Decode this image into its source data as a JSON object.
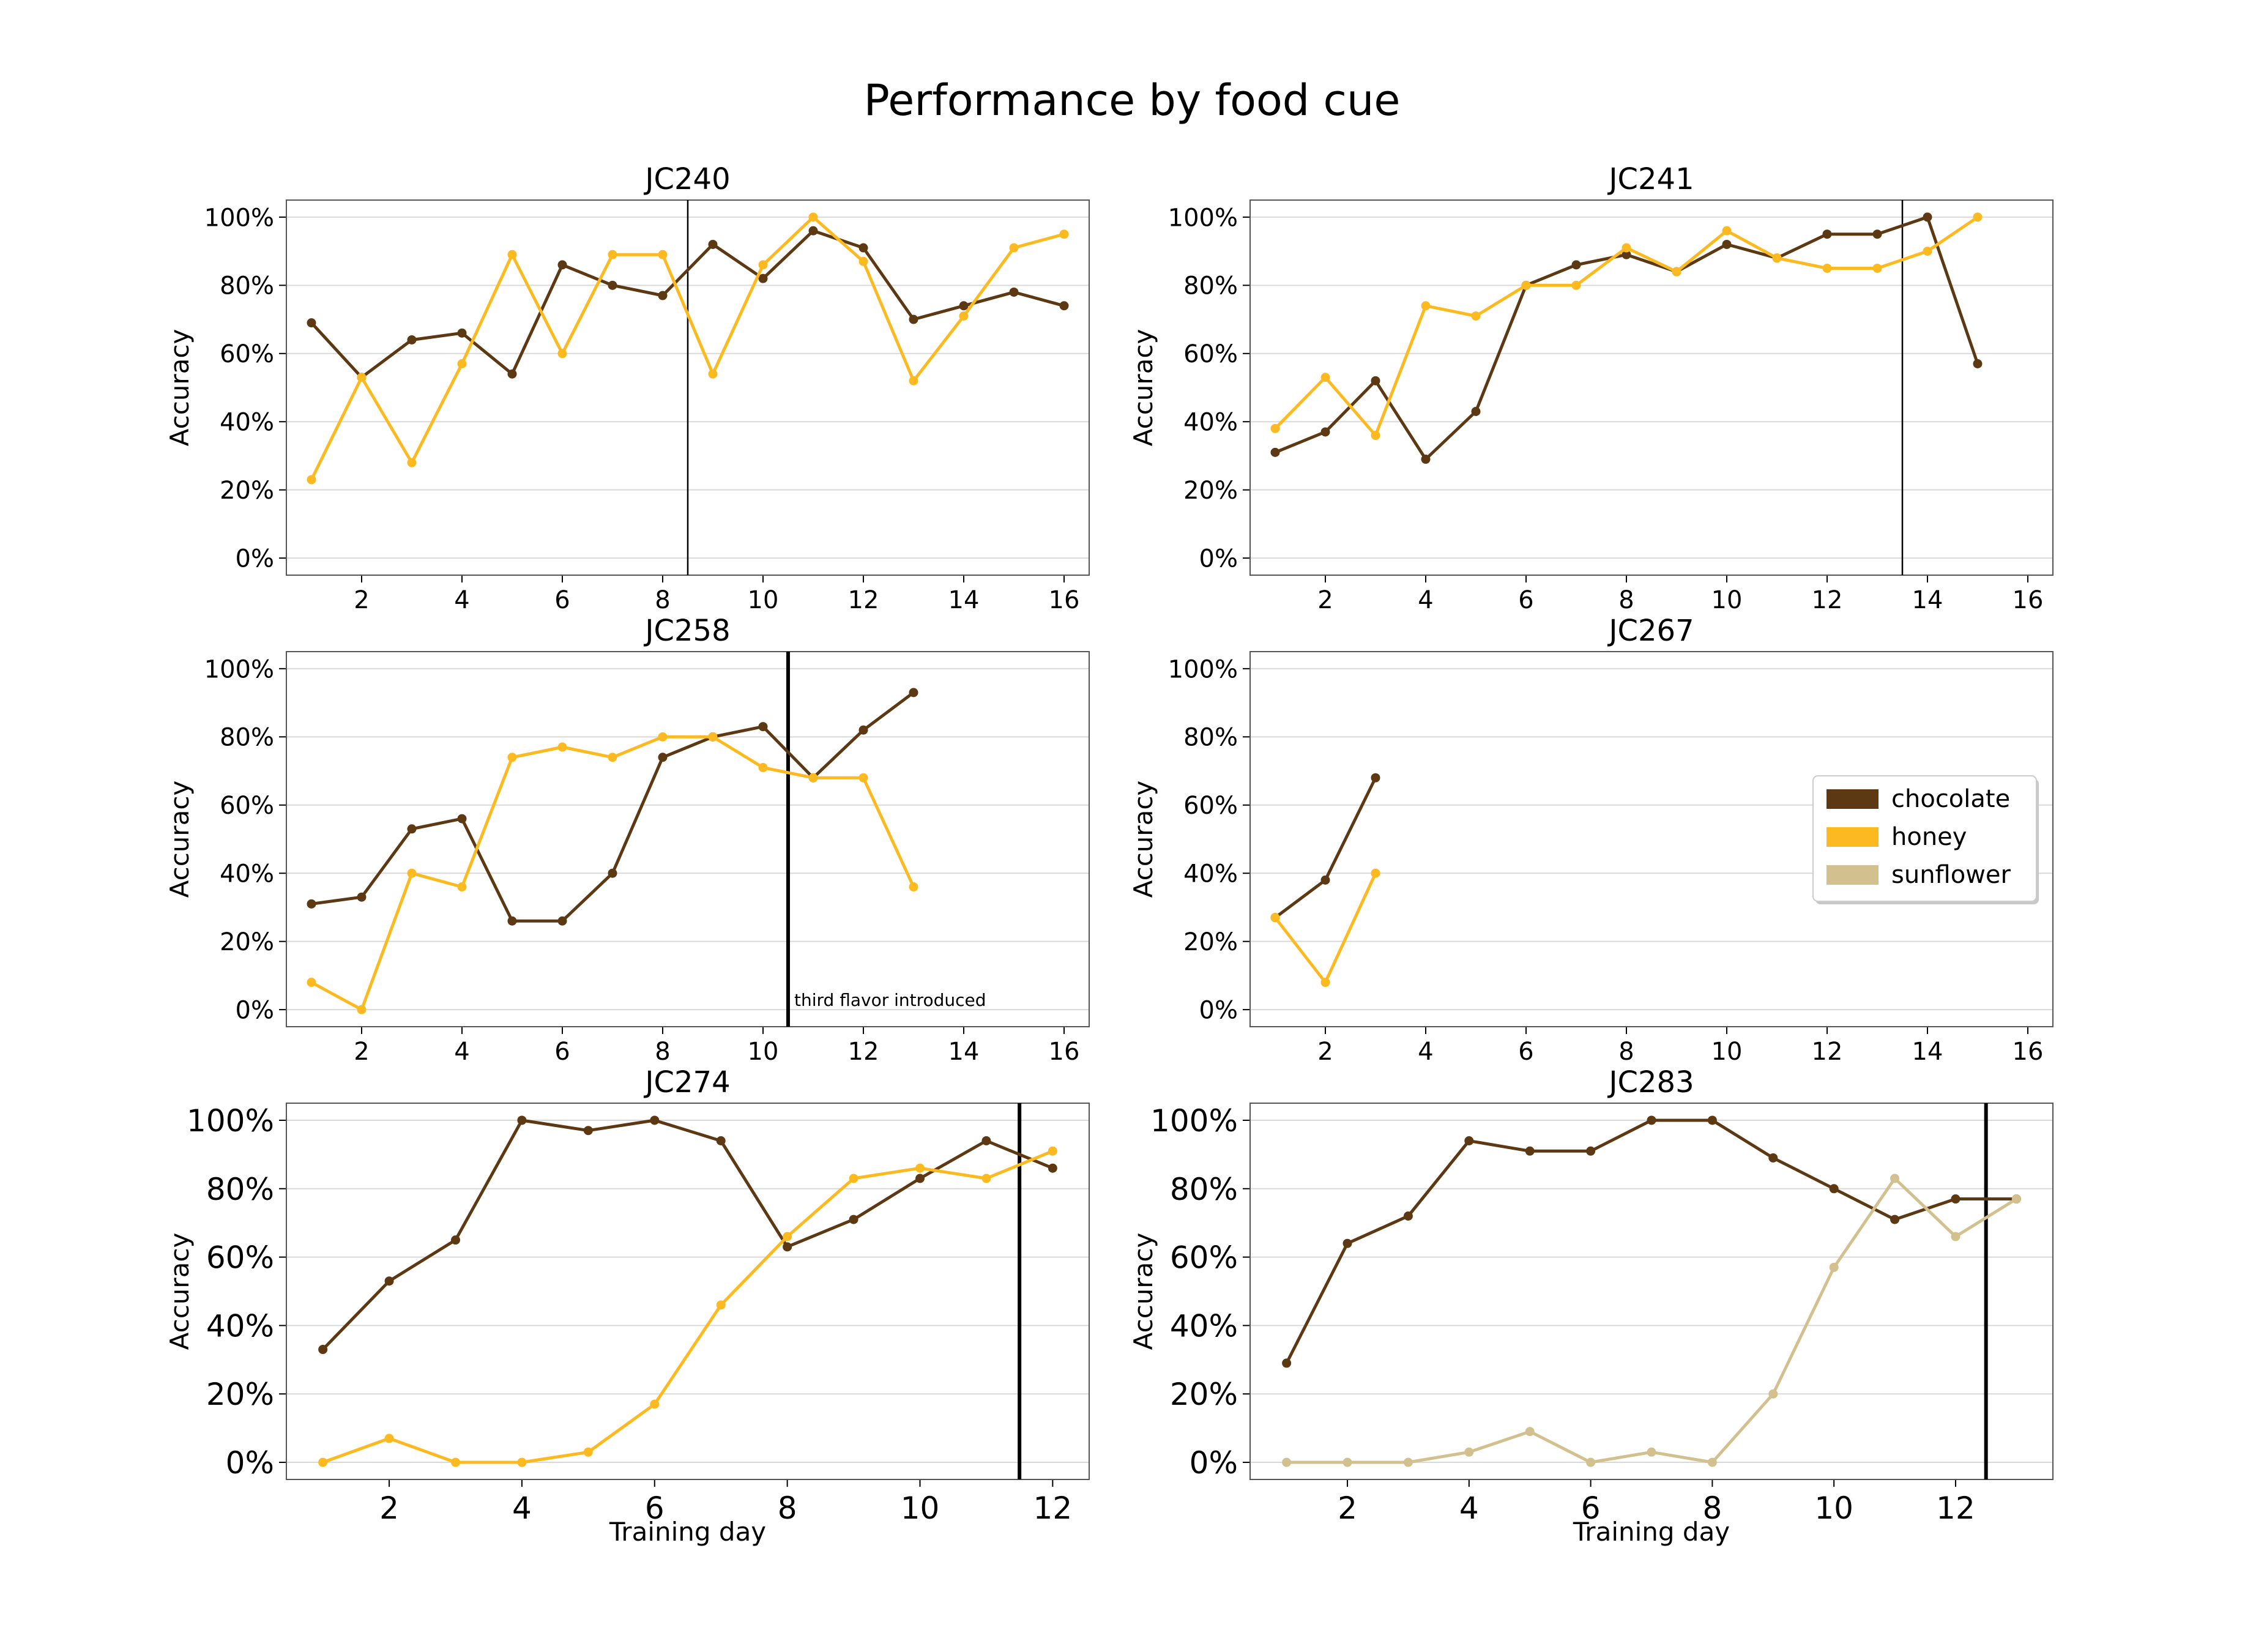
{
  "figure_title": "Performance by food cue",
  "legend": [
    {
      "label": "chocolate",
      "color": "#5c3813"
    },
    {
      "label": "honey",
      "color": "#fcba20"
    },
    {
      "label": "sunflower",
      "color": "#d3c08f"
    }
  ],
  "colors": {
    "chocolate": "#5c3813",
    "honey": "#fcba20",
    "sunflower": "#d3c08f",
    "grid": "#d9d9d9",
    "divider": "#000000"
  },
  "annotation": "third flavor introduced",
  "chart_data": [
    {
      "type": "line",
      "title": "JC240",
      "xlabel": "",
      "ylabel": "Accuracy",
      "xlim": [
        0.5,
        16.5
      ],
      "ylim": [
        -5,
        105
      ],
      "xticks": [
        2,
        4,
        6,
        8,
        10,
        12,
        14,
        16
      ],
      "yticks": [
        "0%",
        "20%",
        "40%",
        "60%",
        "80%",
        "100%"
      ],
      "divider_x": 8.5,
      "grid": true,
      "series": [
        {
          "name": "chocolate",
          "x": [
            1,
            2,
            3,
            4,
            5,
            6,
            7,
            8,
            9,
            10,
            11,
            12,
            13,
            14,
            15,
            16
          ],
          "values": [
            69,
            53,
            64,
            66,
            54,
            86,
            80,
            77,
            92,
            82,
            96,
            91,
            70,
            74,
            78,
            74
          ]
        },
        {
          "name": "honey",
          "x": [
            1,
            2,
            3,
            4,
            5,
            6,
            7,
            8,
            9,
            10,
            11,
            12,
            13,
            14,
            15,
            16
          ],
          "values": [
            23,
            53,
            28,
            57,
            89,
            60,
            89,
            89,
            54,
            86,
            100,
            87,
            52,
            71,
            91,
            95
          ]
        }
      ]
    },
    {
      "type": "line",
      "title": "JC241",
      "xlabel": "",
      "ylabel": "Accuracy",
      "xlim": [
        0.5,
        16.5
      ],
      "ylim": [
        -5,
        105
      ],
      "xticks": [
        2,
        4,
        6,
        8,
        10,
        12,
        14,
        16
      ],
      "yticks": [
        "0%",
        "20%",
        "40%",
        "60%",
        "80%",
        "100%"
      ],
      "divider_x": 13.5,
      "grid": true,
      "series": [
        {
          "name": "chocolate",
          "x": [
            1,
            2,
            3,
            4,
            5,
            6,
            7,
            8,
            9,
            10,
            11,
            12,
            13,
            14,
            15
          ],
          "values": [
            31,
            37,
            52,
            29,
            43,
            80,
            86,
            89,
            84,
            92,
            88,
            95,
            95,
            100,
            57
          ]
        },
        {
          "name": "honey",
          "x": [
            1,
            2,
            3,
            4,
            5,
            6,
            7,
            8,
            9,
            10,
            11,
            12,
            13,
            14,
            15
          ],
          "values": [
            38,
            53,
            36,
            74,
            71,
            80,
            80,
            91,
            84,
            96,
            88,
            85,
            85,
            90,
            100
          ]
        }
      ]
    },
    {
      "type": "line",
      "title": "JC258",
      "xlabel": "",
      "ylabel": "Accuracy",
      "xlim": [
        0.5,
        16.5
      ],
      "ylim": [
        -5,
        105
      ],
      "xticks": [
        2,
        4,
        6,
        8,
        10,
        12,
        14,
        16
      ],
      "yticks": [
        "0%",
        "20%",
        "40%",
        "60%",
        "80%",
        "100%"
      ],
      "divider_x": 10.5,
      "grid": true,
      "annotated": true,
      "series": [
        {
          "name": "chocolate",
          "x": [
            1,
            2,
            3,
            4,
            5,
            6,
            7,
            8,
            9,
            10,
            11,
            12,
            13
          ],
          "values": [
            31,
            33,
            53,
            56,
            26,
            26,
            40,
            74,
            80,
            83,
            68,
            82,
            93
          ]
        },
        {
          "name": "honey",
          "x": [
            1,
            2,
            3,
            4,
            5,
            6,
            7,
            8,
            9,
            10,
            11,
            12,
            13
          ],
          "values": [
            8,
            0,
            40,
            36,
            74,
            77,
            74,
            80,
            80,
            71,
            68,
            68,
            36
          ]
        }
      ]
    },
    {
      "type": "line",
      "title": "JC267",
      "xlabel": "",
      "ylabel": "Accuracy",
      "xlim": [
        0.5,
        16.5
      ],
      "ylim": [
        -5,
        105
      ],
      "xticks": [
        2,
        4,
        6,
        8,
        10,
        12,
        14,
        16
      ],
      "yticks": [
        "0%",
        "20%",
        "40%",
        "60%",
        "80%",
        "100%"
      ],
      "divider_x": null,
      "grid": true,
      "legend": "center-right",
      "series": [
        {
          "name": "chocolate",
          "x": [
            1,
            2,
            3
          ],
          "values": [
            27,
            38,
            68
          ]
        },
        {
          "name": "honey",
          "x": [
            1,
            2,
            3
          ],
          "values": [
            27,
            8,
            40
          ]
        }
      ]
    },
    {
      "type": "line",
      "title": "JC274",
      "xlabel": "Training day",
      "ylabel": "Accuracy",
      "xlim": [
        0.45,
        12.55
      ],
      "ylim": [
        -5,
        105
      ],
      "xticks": [
        2,
        4,
        6,
        8,
        10,
        12
      ],
      "yticks": [
        "0%",
        "20%",
        "40%",
        "60%",
        "80%",
        "100%"
      ],
      "divider_x": 11.5,
      "grid": true,
      "series": [
        {
          "name": "chocolate",
          "x": [
            1,
            2,
            3,
            4,
            5,
            6,
            7,
            8,
            9,
            10,
            11,
            12
          ],
          "values": [
            33,
            53,
            65,
            100,
            97,
            100,
            94,
            63,
            71,
            83,
            94,
            86
          ]
        },
        {
          "name": "honey",
          "x": [
            1,
            2,
            3,
            4,
            5,
            6,
            7,
            8,
            9,
            10,
            11,
            12
          ],
          "values": [
            0,
            7,
            0,
            0,
            3,
            17,
            46,
            66,
            83,
            86,
            83,
            91
          ]
        }
      ]
    },
    {
      "type": "line",
      "title": "JC283",
      "xlabel": "Training day",
      "ylabel": "Accuracy",
      "xlim": [
        0.4,
        13.6
      ],
      "ylim": [
        -5,
        105
      ],
      "xticks": [
        2,
        4,
        6,
        8,
        10,
        12
      ],
      "yticks": [
        "0%",
        "20%",
        "40%",
        "60%",
        "80%",
        "100%"
      ],
      "divider_x": 12.5,
      "grid": true,
      "series": [
        {
          "name": "chocolate",
          "x": [
            1,
            2,
            3,
            4,
            5,
            6,
            7,
            8,
            9,
            10,
            11,
            12,
            13
          ],
          "values": [
            29,
            64,
            72,
            94,
            91,
            91,
            100,
            100,
            89,
            80,
            71,
            77,
            77
          ]
        },
        {
          "name": "sunflower",
          "x": [
            1,
            2,
            3,
            4,
            5,
            6,
            7,
            8,
            9,
            10,
            11,
            12,
            13
          ],
          "values": [
            0,
            0,
            0,
            3,
            9,
            0,
            3,
            0,
            20,
            57,
            83,
            66,
            77
          ]
        }
      ]
    }
  ]
}
